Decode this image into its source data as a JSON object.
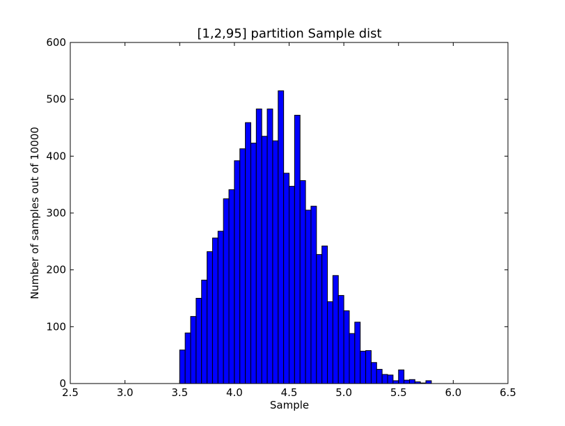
{
  "chart_data": {
    "type": "bar",
    "title": "[1,2,95] partition Sample dist",
    "xlabel": "Sample",
    "ylabel": "Number of samples out of 10000",
    "xlim": [
      2.5,
      6.5
    ],
    "ylim": [
      0,
      600
    ],
    "xticks": [
      "2.5",
      "3.0",
      "3.5",
      "4.0",
      "4.5",
      "5.0",
      "5.5",
      "6.0",
      "6.5"
    ],
    "yticks": [
      "0",
      "100",
      "200",
      "300",
      "400",
      "500",
      "600"
    ],
    "grid": false,
    "bin_start": 3.5,
    "bin_width": 0.05,
    "values": [
      59,
      89,
      118,
      150,
      182,
      232,
      256,
      268,
      325,
      341,
      392,
      413,
      459,
      423,
      483,
      435,
      483,
      427,
      515,
      370,
      347,
      472,
      357,
      305,
      312,
      227,
      242,
      144,
      190,
      155,
      128,
      88,
      108,
      57,
      58,
      37,
      25,
      16,
      15,
      5,
      24,
      6,
      7,
      3,
      1,
      5
    ],
    "colors": {
      "bar_fill": "#0000ff",
      "bar_edge": "#000000"
    }
  }
}
